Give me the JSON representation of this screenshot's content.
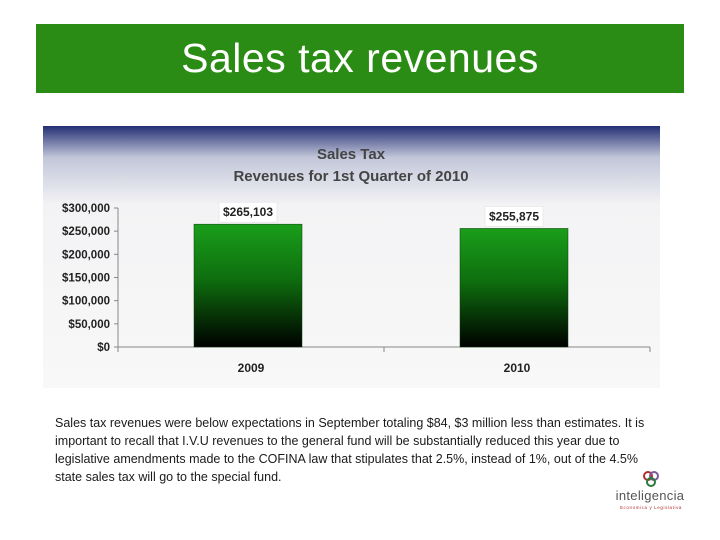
{
  "slide": {
    "title": "Sales tax revenues",
    "body": "Sales tax revenues were below expectations in September totaling $84, $3 million less than estimates. It is important to recall that I.V.U revenues to the general fund will be substantially reduced this year due to legislative amendments made to the COFINA law that stipulates that 2.5%, instead of 1%, out of the 4.5% state sales tax will go to the special fund."
  },
  "logo": {
    "name": "inteligencia",
    "tagline": "Economica y Legislativa"
  },
  "colors": {
    "banner": "#2a8c14",
    "bar_top": "#1a9e1a",
    "bar_bottom": "#000000",
    "chart_bg_top": "#232f74",
    "chart_bg_bottom": "#f8f8f8"
  },
  "chart_data": {
    "type": "bar",
    "title": "Sales Tax\nRevenues  for 1st Quarter of 2010",
    "categories": [
      "2009",
      "2010"
    ],
    "values": [
      265103,
      255875
    ],
    "data_labels": [
      "$265,103",
      "$255,875"
    ],
    "ylim": [
      0,
      300000
    ],
    "yticks": [
      0,
      50000,
      100000,
      150000,
      200000,
      250000,
      300000
    ],
    "ytick_labels": [
      "$0",
      "$50,000",
      "$100,000",
      "$150,000",
      "$200,000",
      "$250,000",
      "$300,000"
    ],
    "xlabel": "",
    "ylabel": "",
    "grid": false,
    "legend": false
  }
}
